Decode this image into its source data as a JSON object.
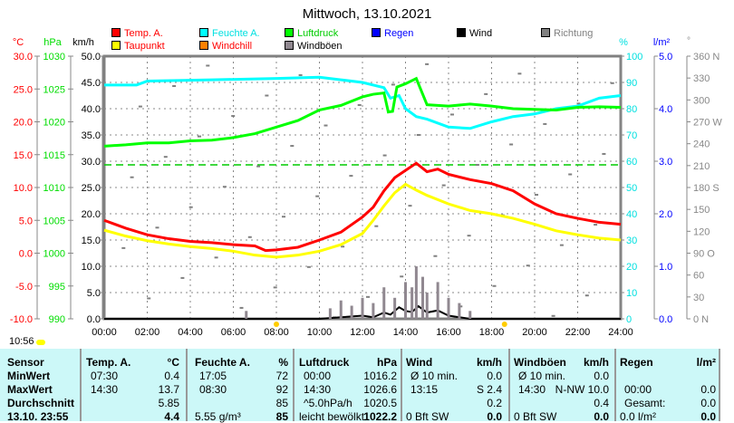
{
  "title": "Mittwoch, 13.10.2021",
  "clock": "10:56",
  "legend": [
    {
      "label": "Temp. A.",
      "color": "#ff0000",
      "text": "#ff0000"
    },
    {
      "label": "Feuchte A.",
      "color": "#00ffff",
      "text": "#00e0e0"
    },
    {
      "label": "Luftdruck",
      "color": "#00ff00",
      "text": "#00cc00"
    },
    {
      "label": "Regen",
      "color": "#0000ff",
      "text": "#0000ff"
    },
    {
      "label": "Wind",
      "color": "#000000",
      "text": "#000000"
    },
    {
      "label": "Richtung",
      "color": "#808080",
      "text": "#808080"
    },
    {
      "label": "Taupunkt",
      "color": "#ffff00",
      "text": "#ff0000"
    },
    {
      "label": "Windchill",
      "color": "#ff8000",
      "text": "#ff0000"
    },
    {
      "label": "Windböen",
      "color": "#908890",
      "text": "#000000"
    }
  ],
  "axis_units": {
    "temp": "°C",
    "press": "hPa",
    "wind": "km/h",
    "hum": "%",
    "rain": "l/m²",
    "dir": "°"
  },
  "table": {
    "headers": [
      "Sensor",
      "Temp. A.",
      "°C",
      "Feuchte A.",
      "%",
      "Luftdruck",
      "hPa",
      "Wind",
      "km/h",
      "Windböen",
      "km/h",
      "Regen",
      "l/m²"
    ],
    "rows": [
      [
        "MinWert",
        "07:30",
        "0.4",
        "17:05",
        "72",
        "00:00",
        "1016.2",
        "Ø 10 min.",
        "0.0",
        "Ø 10 min.",
        "0.0",
        "",
        ""
      ],
      [
        "MaxWert",
        "14:30",
        "13.7",
        "08:30",
        "92",
        "14:30",
        "1026.6",
        "13:15",
        "S 2.4",
        "14:30",
        "N-NW 10.0",
        "00:00",
        "0.0"
      ],
      [
        "Durchschnitt",
        "",
        "5.85",
        "",
        "85",
        "^5.0hPa/h",
        "1020.5",
        "",
        "0.2",
        "",
        "0.4",
        "Gesamt:",
        "0.0"
      ],
      [
        "13.10. 23:55",
        "",
        "4.4",
        "5.55 g/m³",
        "85",
        "leicht bewölkt",
        "1022.2",
        "0 Bft SW",
        "0.0",
        "0 Bft SW",
        "0.0",
        "0.0 l/m²",
        "0.0"
      ]
    ]
  },
  "chart_data": {
    "type": "line",
    "title": "Mittwoch, 13.10.2021",
    "x_ticks": [
      "00:00",
      "02:00",
      "04:00",
      "06:00",
      "08:00",
      "10:00",
      "12:00",
      "14:00",
      "16:00",
      "18:00",
      "20:00",
      "22:00",
      "24:00"
    ],
    "axes": {
      "temp": {
        "range": [
          -10,
          30
        ],
        "ticks": [
          "30.0",
          "25.0",
          "20.0",
          "15.0",
          "10.0",
          "5.0",
          "0.0",
          "-5.0",
          "-10.0"
        ]
      },
      "press": {
        "range": [
          990,
          1030
        ],
        "ticks": [
          "1030",
          "1025",
          "1020",
          "1015",
          "1010",
          "1005",
          "1000",
          "995",
          "990"
        ]
      },
      "wind": {
        "range": [
          0,
          50
        ],
        "ticks": [
          "50.0",
          "45.0",
          "40.0",
          "35.0",
          "30.0",
          "25.0",
          "20.0",
          "15.0",
          "10.0",
          "5.0",
          "0.0"
        ]
      },
      "hum": {
        "range": [
          0,
          100
        ],
        "ticks": [
          "100",
          "90",
          "80",
          "70",
          "60",
          "50",
          "40",
          "30",
          "20",
          "10",
          "0"
        ]
      },
      "rain": {
        "range": [
          0,
          5
        ],
        "ticks": [
          "5.0",
          "4.0",
          "3.0",
          "2.0",
          "1.0",
          "0.0"
        ]
      },
      "dir": {
        "range": [
          0,
          360
        ],
        "ticks": [
          "360 N",
          "330",
          "300",
          "270 W",
          "240",
          "210",
          "180 S",
          "150",
          "120",
          "90  O",
          "60",
          "30",
          "0   N"
        ]
      }
    },
    "series": [
      {
        "name": "Temp. A.",
        "axis": "temp",
        "color": "#ff0000",
        "x": [
          0,
          1,
          2,
          3,
          4,
          5,
          6,
          7,
          7.5,
          8,
          9,
          10,
          11,
          12,
          12.5,
          13,
          13.5,
          14,
          14.5,
          15,
          15.5,
          16,
          17,
          18,
          19,
          20,
          21,
          22,
          23,
          24
        ],
        "y": [
          5,
          3.8,
          2.8,
          2.2,
          1.8,
          1.6,
          1.3,
          1.1,
          0.4,
          0.5,
          0.9,
          2,
          3.2,
          5.5,
          7,
          9.5,
          11.5,
          12.6,
          13.7,
          12.4,
          12.8,
          12,
          11.2,
          10.6,
          9.5,
          7.5,
          6,
          5.3,
          4.7,
          4.4
        ]
      },
      {
        "name": "Taupunkt",
        "axis": "temp",
        "color": "#ffff00",
        "x": [
          0,
          1,
          2,
          3,
          4,
          5,
          6,
          7,
          8,
          9,
          10,
          11,
          12,
          12.5,
          13,
          13.5,
          14,
          14.5,
          15,
          16,
          17,
          18,
          19,
          20,
          21,
          22,
          23,
          24
        ],
        "y": [
          3.5,
          2.6,
          1.9,
          1.4,
          1,
          0.7,
          0.3,
          -0.3,
          -0.6,
          -0.3,
          0.3,
          1.3,
          3,
          5,
          7.2,
          9.2,
          10.5,
          9.6,
          8.8,
          7.5,
          6.5,
          6,
          5.3,
          4.4,
          3.4,
          2.8,
          2.3,
          2
        ]
      },
      {
        "name": "Feuchte A.",
        "axis": "hum",
        "color": "#00ffff",
        "x": [
          0,
          1.5,
          2,
          5,
          8,
          10,
          11,
          12,
          13,
          13.3,
          13.7,
          14,
          14.5,
          15,
          16,
          17,
          18,
          19,
          20,
          21,
          22,
          23,
          24
        ],
        "y": [
          89,
          89,
          90.5,
          91,
          91.5,
          92,
          91,
          90,
          88,
          84,
          85,
          80,
          77,
          76,
          73,
          72.5,
          75,
          77,
          78,
          80,
          81,
          84,
          85
        ]
      },
      {
        "name": "Luftdruck",
        "axis": "press",
        "color": "#00ff00",
        "x": [
          0,
          1,
          2,
          3,
          4,
          5,
          6,
          7,
          8,
          9,
          10,
          11,
          12,
          12.5,
          13,
          13.2,
          13.4,
          13.6,
          14,
          14.5,
          15,
          15.5,
          16,
          17,
          18,
          19,
          20,
          21,
          22,
          23,
          24
        ],
        "y": [
          1016.3,
          1016.5,
          1016.8,
          1016.8,
          1017.1,
          1017.2,
          1017.6,
          1018.2,
          1019.2,
          1020.2,
          1021.8,
          1022.5,
          1023.8,
          1024.2,
          1024.4,
          1021.5,
          1021.6,
          1025.3,
          1025.8,
          1026.6,
          1022.6,
          1022.5,
          1022.4,
          1022.7,
          1022.4,
          1022,
          1021.9,
          1021.8,
          1022.2,
          1022.3,
          1022.2
        ]
      },
      {
        "name": "Wind",
        "axis": "wind",
        "color": "#000000",
        "x": [
          0,
          10,
          11,
          12,
          12.5,
          13,
          13.3,
          13.7,
          14,
          14.3,
          14.6,
          15,
          15.5,
          16,
          16.5,
          17,
          24
        ],
        "y": [
          0,
          0,
          0.3,
          0.6,
          0.3,
          1.2,
          0.8,
          2.2,
          1.5,
          1.3,
          2.4,
          1.2,
          1.6,
          0.6,
          0.3,
          0,
          0
        ]
      },
      {
        "name": "Windböen",
        "axis": "wind",
        "color": "#908890",
        "type": "bar",
        "x": [
          6.6,
          10.5,
          11,
          11.5,
          12,
          12.5,
          13,
          13.5,
          14,
          14.3,
          14.5,
          14.8,
          15,
          15.5,
          16,
          16.5,
          17
        ],
        "y": [
          1.5,
          2,
          3.5,
          2.5,
          4,
          3,
          6,
          4,
          7,
          6,
          10,
          8,
          5,
          7,
          4,
          3,
          1.5
        ]
      }
    ],
    "reference_lines": [
      {
        "axis": "hum",
        "value": 58.6,
        "color": "#00cc00",
        "style": "dashed"
      }
    ]
  }
}
